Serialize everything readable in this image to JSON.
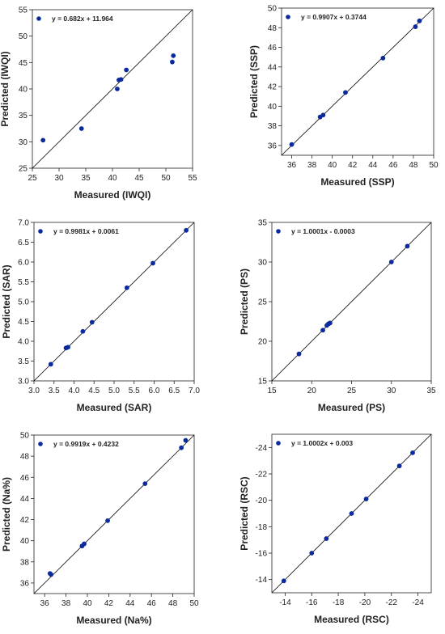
{
  "colors": {
    "point": "#0b2a9e",
    "line": "#000000",
    "axis": "#222222"
  },
  "chart_data": [
    {
      "type": "scatter",
      "xlabel": "Measured (IWQI)",
      "ylabel": "Predicted (IWQI)",
      "legend": "y = 0.682x + 11.964",
      "xlim": [
        25,
        55
      ],
      "ylim": [
        25,
        55
      ],
      "xticks": [
        25,
        30,
        35,
        40,
        45,
        50,
        55
      ],
      "yticks": [
        25,
        30,
        35,
        40,
        45,
        50,
        55
      ],
      "reverse": false,
      "points": [
        [
          27,
          30.3
        ],
        [
          34.2,
          32.5
        ],
        [
          40.9,
          40.0
        ],
        [
          41.2,
          41.7
        ],
        [
          41.6,
          41.8
        ],
        [
          42.6,
          43.6
        ],
        [
          51.2,
          45.1
        ],
        [
          51.4,
          46.3
        ]
      ]
    },
    {
      "type": "scatter",
      "xlabel": "Measured (SSP)",
      "ylabel": "Predicted (SSP)",
      "legend": "y = 0.9907x + 0.3744",
      "xlim": [
        35,
        50
      ],
      "ylim": [
        35,
        50
      ],
      "xticks": [
        36,
        38,
        40,
        42,
        44,
        46,
        48,
        50
      ],
      "yticks": [
        36,
        38,
        40,
        42,
        44,
        46,
        48,
        50
      ],
      "reverse": false,
      "points": [
        [
          36.0,
          36.1
        ],
        [
          38.8,
          38.9
        ],
        [
          39.1,
          39.1
        ],
        [
          41.3,
          41.4
        ],
        [
          45.0,
          44.9
        ],
        [
          48.2,
          48.1
        ],
        [
          48.6,
          48.7
        ]
      ]
    },
    {
      "type": "scatter",
      "xlabel": "Measured (SAR)",
      "ylabel": "Predicted (SAR)",
      "legend": "y = 0.9981x + 0.0061",
      "xlim": [
        3.0,
        7.0
      ],
      "ylim": [
        3.0,
        7.0
      ],
      "xticks": [
        "3.0",
        "3.5",
        "4.0",
        "4.5",
        "5.0",
        "5.5",
        "6.0",
        "6.5",
        "7.0"
      ],
      "yticks": [
        "3.0",
        "3.5",
        "4.0",
        "4.5",
        "5.0",
        "5.5",
        "6.0",
        "6.5",
        "7.0"
      ],
      "reverse": false,
      "points": [
        [
          3.42,
          3.42
        ],
        [
          3.8,
          3.83
        ],
        [
          3.85,
          3.85
        ],
        [
          4.22,
          4.25
        ],
        [
          4.45,
          4.48
        ],
        [
          5.32,
          5.35
        ],
        [
          5.97,
          5.97
        ],
        [
          6.8,
          6.8
        ]
      ]
    },
    {
      "type": "scatter",
      "xlabel": "Measured (PS)",
      "ylabel": "Predicted (PS)",
      "legend": "y = 1.0001x - 0.0003",
      "xlim": [
        15,
        35
      ],
      "ylim": [
        15,
        35
      ],
      "xticks": [
        15,
        20,
        25,
        30,
        35
      ],
      "yticks": [
        15,
        20,
        25,
        30,
        35
      ],
      "reverse": false,
      "points": [
        [
          18.4,
          18.4
        ],
        [
          21.4,
          21.4
        ],
        [
          21.9,
          22.0
        ],
        [
          22.1,
          22.2
        ],
        [
          22.3,
          22.3
        ],
        [
          30.0,
          30.0
        ],
        [
          32.0,
          32.0
        ]
      ]
    },
    {
      "type": "scatter",
      "xlabel": "Measured (Na%)",
      "ylabel": "Predicted (Na%)",
      "legend": "y = 0.9919x + 0.4232",
      "xlim": [
        35,
        50
      ],
      "ylim": [
        35,
        50
      ],
      "xticks": [
        36,
        38,
        40,
        42,
        44,
        46,
        48,
        50
      ],
      "yticks": [
        36,
        38,
        40,
        42,
        44,
        46,
        48,
        50
      ],
      "reverse": false,
      "points": [
        [
          36.5,
          36.9
        ],
        [
          36.6,
          36.8
        ],
        [
          39.5,
          39.5
        ],
        [
          39.7,
          39.7
        ],
        [
          41.9,
          41.9
        ],
        [
          45.4,
          45.4
        ],
        [
          48.8,
          48.8
        ],
        [
          49.2,
          49.5
        ]
      ]
    },
    {
      "type": "scatter",
      "xlabel": "Measured (RSC)",
      "ylabel": "Predicted (RSC)",
      "legend": "y = 1.0002x + 0.003",
      "xlim": [
        -13,
        -25
      ],
      "ylim": [
        -13,
        -25
      ],
      "xticks": [
        -14,
        -16,
        -18,
        -20,
        -22,
        -24
      ],
      "yticks": [
        -14,
        -16,
        -18,
        -20,
        -22,
        -24
      ],
      "reverse": true,
      "points": [
        [
          -13.9,
          -13.9
        ],
        [
          -16.0,
          -16.0
        ],
        [
          -17.1,
          -17.1
        ],
        [
          -19.0,
          -19.0
        ],
        [
          -20.1,
          -20.1
        ],
        [
          -22.6,
          -22.6
        ],
        [
          -23.6,
          -23.6
        ]
      ]
    }
  ]
}
